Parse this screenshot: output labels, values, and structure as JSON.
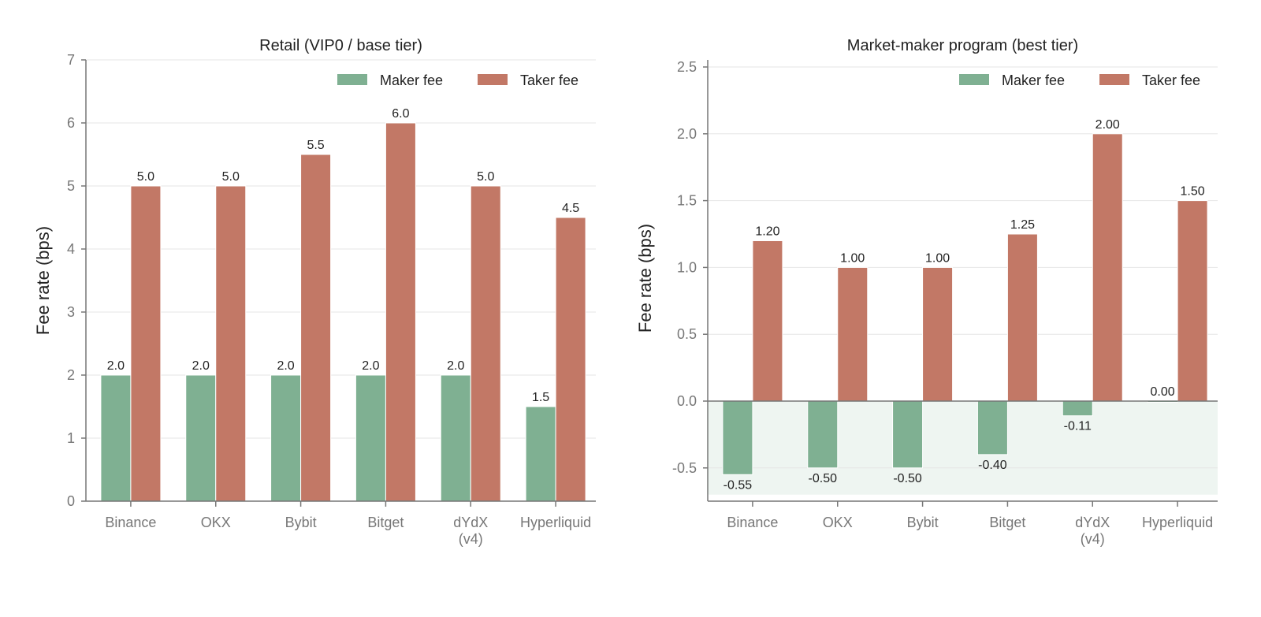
{
  "colors": {
    "maker": "#7fb092",
    "taker": "#c27866",
    "axis": "#777777",
    "grid": "#e6e6e6",
    "text": "#222222",
    "tick_text": "#777777",
    "negative_band": "#eef5f1"
  },
  "chart_data": [
    {
      "type": "bar",
      "title": "Retail (VIP0 / base tier)",
      "ylabel": "Fee rate (bps)",
      "xlabel": "",
      "categories": [
        [
          "Binance"
        ],
        [
          "OKX"
        ],
        [
          "Bybit"
        ],
        [
          "Bitget"
        ],
        [
          "dYdX",
          "(v4)"
        ],
        [
          "Hyperliquid"
        ]
      ],
      "ylim": [
        0,
        7
      ],
      "yticks": [
        0,
        1,
        2,
        3,
        4,
        5,
        6,
        7
      ],
      "ytick_labels": [
        "0",
        "1",
        "2",
        "3",
        "4",
        "5",
        "6",
        "7"
      ],
      "grid": true,
      "legend": "top-right",
      "series": [
        {
          "name": "Maker fee",
          "color": "#7fb092",
          "values": [
            2.0,
            2.0,
            2.0,
            2.0,
            2.0,
            1.5
          ],
          "labels": [
            "2.0",
            "2.0",
            "2.0",
            "2.0",
            "2.0",
            "1.5"
          ]
        },
        {
          "name": "Taker fee",
          "color": "#c27866",
          "values": [
            5.0,
            5.0,
            5.5,
            6.0,
            5.0,
            4.5
          ],
          "labels": [
            "5.0",
            "5.0",
            "5.5",
            "6.0",
            "5.0",
            "4.5"
          ]
        }
      ]
    },
    {
      "type": "bar",
      "title": "Market-maker program (best tier)",
      "ylabel": "Fee rate (bps)",
      "xlabel": "",
      "categories": [
        [
          "Binance"
        ],
        [
          "OKX"
        ],
        [
          "Bybit"
        ],
        [
          "Bitget"
        ],
        [
          "dYdX",
          "(v4)"
        ],
        [
          "Hyperliquid"
        ]
      ],
      "ylim": [
        -0.75,
        2.55
      ],
      "yticks": [
        -0.5,
        0.0,
        0.5,
        1.0,
        1.5,
        2.0,
        2.5
      ],
      "ytick_labels": [
        "-0.5",
        "0.0",
        "0.5",
        "1.0",
        "1.5",
        "2.0",
        "2.5"
      ],
      "grid": true,
      "legend": "top-right",
      "negative_region_shaded": true,
      "series": [
        {
          "name": "Maker fee",
          "color": "#7fb092",
          "values": [
            -0.55,
            -0.5,
            -0.5,
            -0.4,
            -0.11,
            0.0
          ],
          "labels": [
            "-0.55",
            "-0.50",
            "-0.50",
            "-0.40",
            "-0.11",
            "0.00"
          ]
        },
        {
          "name": "Taker fee",
          "color": "#c27866",
          "values": [
            1.2,
            1.0,
            1.0,
            1.25,
            2.0,
            1.5
          ],
          "labels": [
            "1.20",
            "1.00",
            "1.00",
            "1.25",
            "2.00",
            "1.50"
          ]
        }
      ]
    }
  ]
}
